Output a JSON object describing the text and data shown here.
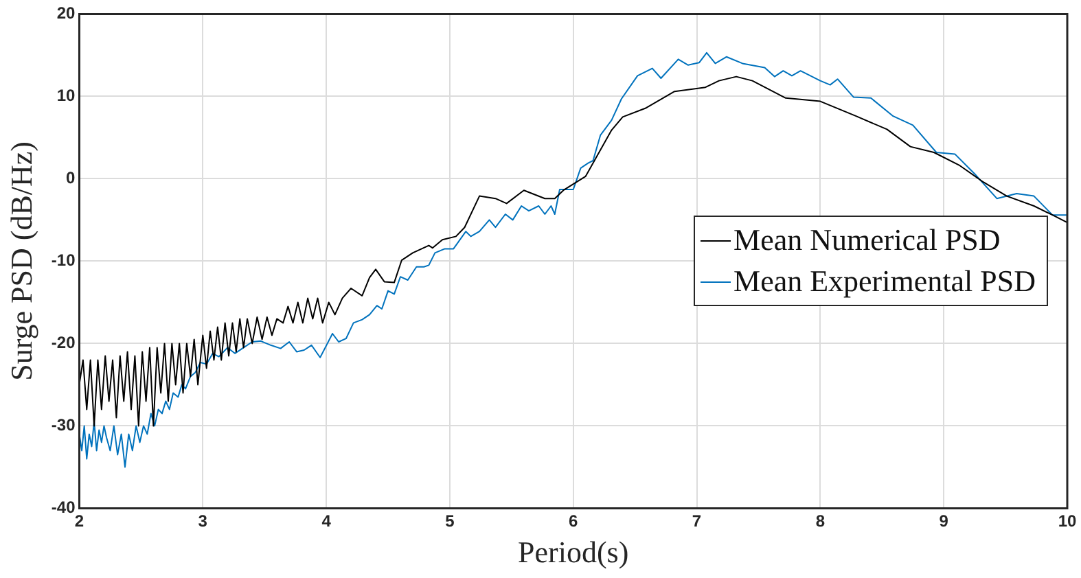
{
  "chart_data": {
    "type": "line",
    "xlabel": "Period(s)",
    "ylabel": "Surge PSD (dB/Hz)",
    "xlim": [
      2,
      10
    ],
    "xticks": [
      2,
      3,
      4,
      5,
      6,
      7,
      8,
      9,
      10
    ],
    "ylim": [
      -40,
      20
    ],
    "yticks": [
      -40,
      -30,
      -20,
      -10,
      0,
      10,
      20
    ],
    "grid": true,
    "legend": "right",
    "marker": "none",
    "line_style": "solid",
    "series": [
      {
        "name": "Mean Numerical PSD",
        "color": "#000000",
        "x": [
          2.0,
          2.03,
          2.06,
          2.09,
          2.12,
          2.15,
          2.18,
          2.21,
          2.24,
          2.27,
          2.3,
          2.33,
          2.36,
          2.39,
          2.42,
          2.45,
          2.48,
          2.51,
          2.54,
          2.57,
          2.6,
          2.63,
          2.66,
          2.69,
          2.72,
          2.75,
          2.78,
          2.81,
          2.84,
          2.87,
          2.9,
          2.93,
          2.96,
          3.0,
          3.03,
          3.06,
          3.09,
          3.12,
          3.15,
          3.18,
          3.21,
          3.24,
          3.27,
          3.3,
          3.33,
          3.36,
          3.4,
          3.44,
          3.48,
          3.52,
          3.56,
          3.6,
          3.65,
          3.69,
          3.73,
          3.77,
          3.81,
          3.85,
          3.89,
          3.93,
          3.97,
          4.02,
          4.07,
          4.13,
          4.2,
          4.29,
          4.35,
          4.4,
          4.47,
          4.55,
          4.61,
          4.7,
          4.83,
          4.86,
          4.94,
          5.05,
          5.12,
          5.24,
          5.37,
          5.46,
          5.6,
          5.77,
          5.85,
          5.92,
          6.1,
          6.31,
          6.4,
          6.59,
          6.82,
          7.07,
          7.18,
          7.32,
          7.45,
          7.72,
          8.0,
          8.29,
          8.54,
          8.73,
          8.92,
          9.13,
          9.32,
          9.51,
          9.73,
          9.88,
          10
        ],
        "values": [
          -25,
          -22,
          -28,
          -22,
          -30,
          -22,
          -28,
          -21.5,
          -27,
          -22,
          -29,
          -21.5,
          -27,
          -21,
          -28,
          -21.5,
          -30,
          -21,
          -27,
          -20.5,
          -30,
          -20.5,
          -26,
          -20,
          -27,
          -20,
          -25,
          -20,
          -26,
          -20,
          -24,
          -19.5,
          -25,
          -19,
          -23,
          -18.5,
          -22,
          -18,
          -22,
          -17.5,
          -21.5,
          -17.5,
          -21,
          -17,
          -20.5,
          -17,
          -20,
          -16.8,
          -19.5,
          -16.8,
          -19,
          -17,
          -17.5,
          -15.5,
          -17.5,
          -15,
          -17.5,
          -14.5,
          -17,
          -14.5,
          -17.5,
          -15,
          -16.5,
          -14.5,
          -13.3,
          -14.2,
          -12,
          -11,
          -12.5,
          -12.6,
          -9.9,
          -9,
          -8.1,
          -8.4,
          -7.4,
          -7,
          -5.9,
          -2.1,
          -2.4,
          -3,
          -1.4,
          -2.4,
          -2.4,
          -1.4,
          0.3,
          5.9,
          7.5,
          8.6,
          10.6,
          11.1,
          11.9,
          12.4,
          11.9,
          9.8,
          9.4,
          7.6,
          6,
          3.9,
          3.2,
          1.6,
          -0.4,
          -2.1,
          -3.3,
          -4.4,
          -5.3
        ]
      },
      {
        "name": "Mean Experimental PSD",
        "color": "#0072bd",
        "x": [
          2.0,
          2.02,
          2.04,
          2.06,
          2.08,
          2.1,
          2.12,
          2.14,
          2.16,
          2.18,
          2.2,
          2.22,
          2.25,
          2.28,
          2.31,
          2.34,
          2.37,
          2.4,
          2.43,
          2.46,
          2.49,
          2.52,
          2.55,
          2.58,
          2.61,
          2.64,
          2.67,
          2.7,
          2.73,
          2.76,
          2.8,
          2.83,
          2.86,
          2.9,
          2.94,
          2.98,
          3.03,
          3.08,
          3.13,
          3.2,
          3.26,
          3.32,
          3.4,
          3.47,
          3.55,
          3.63,
          3.7,
          3.76,
          3.82,
          3.88,
          3.95,
          4.05,
          4.1,
          4.16,
          4.22,
          4.29,
          4.35,
          4.41,
          4.45,
          4.5,
          4.55,
          4.6,
          4.66,
          4.73,
          4.79,
          4.83,
          4.88,
          4.96,
          5.03,
          5.13,
          5.17,
          5.24,
          5.32,
          5.37,
          5.45,
          5.51,
          5.58,
          5.64,
          5.72,
          5.77,
          5.82,
          5.85,
          5.89,
          6.0,
          6.06,
          6.12,
          6.16,
          6.22,
          6.31,
          6.39,
          6.52,
          6.64,
          6.71,
          6.85,
          6.93,
          7.02,
          7.08,
          7.15,
          7.24,
          7.37,
          7.55,
          7.63,
          7.7,
          7.77,
          7.84,
          8.0,
          8.08,
          8.14,
          8.27,
          8.41,
          8.59,
          8.75,
          8.94,
          9.09,
          9.25,
          9.43,
          9.59,
          9.73,
          9.88,
          10
        ],
        "values": [
          -31,
          -33,
          -30,
          -34,
          -31,
          -32.5,
          -29.5,
          -33,
          -30.5,
          -32,
          -30,
          -31.4,
          -33,
          -30,
          -33.5,
          -31,
          -35,
          -31,
          -33,
          -30,
          -32,
          -30,
          -31,
          -28.5,
          -30,
          -28,
          -28.5,
          -27,
          -28,
          -26,
          -26.5,
          -25,
          -25.5,
          -24,
          -23.5,
          -22.3,
          -22.5,
          -21.2,
          -21.6,
          -20.5,
          -21.2,
          -20.6,
          -19.8,
          -19.7,
          -20.2,
          -20.6,
          -19.8,
          -21,
          -20.8,
          -20.2,
          -21.7,
          -18.8,
          -19.8,
          -19.4,
          -17.5,
          -17.1,
          -16.5,
          -15.4,
          -15.8,
          -13.6,
          -14,
          -11.9,
          -12.3,
          -10.7,
          -10.7,
          -10.5,
          -9,
          -8.5,
          -8.5,
          -6.4,
          -7,
          -6.4,
          -5,
          -5.9,
          -4.3,
          -5,
          -3.3,
          -3.9,
          -3.3,
          -4.3,
          -3.3,
          -4.3,
          -1.3,
          -1.3,
          1.3,
          1.9,
          2.2,
          5.3,
          7.1,
          9.7,
          12.5,
          13.4,
          12.2,
          14.5,
          13.8,
          14.1,
          15.3,
          14,
          14.8,
          14,
          13.5,
          12.4,
          13.1,
          12.5,
          13.1,
          11.9,
          11.4,
          12.1,
          9.9,
          9.8,
          7.6,
          6.5,
          3.2,
          3,
          0.6,
          -2.4,
          -1.8,
          -2.1,
          -4.4,
          -4.4
        ]
      }
    ]
  }
}
